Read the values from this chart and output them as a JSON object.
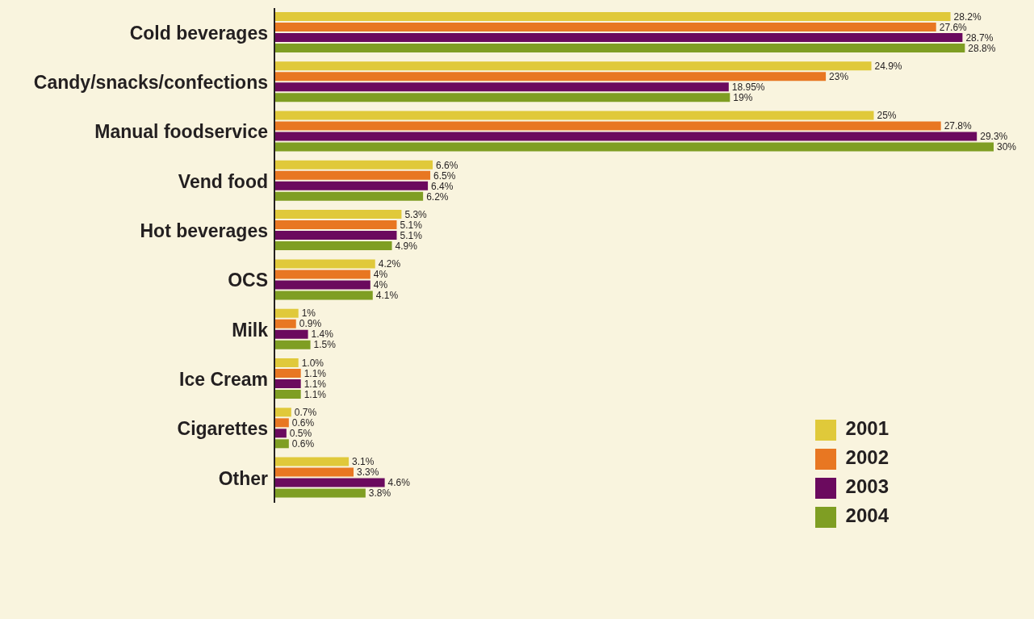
{
  "chart_data": {
    "type": "bar",
    "orientation": "horizontal",
    "categories": [
      "Cold beverages",
      "Candy/snacks/confections",
      "Manual foodservice",
      "Vend food",
      "Hot beverages",
      "OCS",
      "Milk",
      "Ice Cream",
      "Cigarettes",
      "Other"
    ],
    "series": [
      {
        "name": "2001",
        "color": "#e0c93a",
        "values": [
          28.2,
          24.9,
          25,
          6.6,
          5.3,
          4.2,
          1,
          1.0,
          0.7,
          3.1
        ],
        "value_labels": [
          "28.2%",
          "24.9%",
          "25%",
          "6.6%",
          "5.3%",
          "4.2%",
          "1%",
          "1.0%",
          "0.7%",
          "3.1%"
        ]
      },
      {
        "name": "2002",
        "color": "#e87722",
        "values": [
          27.6,
          23,
          27.8,
          6.5,
          5.1,
          4,
          0.9,
          1.1,
          0.6,
          3.3
        ],
        "value_labels": [
          "27.6%",
          "23%",
          "27.8%",
          "6.5%",
          "5.1%",
          "4%",
          "0.9%",
          "1.1%",
          "0.6%",
          "3.3%"
        ]
      },
      {
        "name": "2003",
        "color": "#6b0a5e",
        "values": [
          28.7,
          18.95,
          29.3,
          6.4,
          5.1,
          4,
          1.4,
          1.1,
          0.5,
          4.6
        ],
        "value_labels": [
          "28.7%",
          "18.95%",
          "29.3%",
          "6.4%",
          "5.1%",
          "4%",
          "1.4%",
          "1.1%",
          "0.5%",
          "4.6%"
        ]
      },
      {
        "name": "2004",
        "color": "#7f9e23",
        "values": [
          28.8,
          19,
          30,
          6.2,
          4.9,
          4.1,
          1.5,
          1.1,
          0.6,
          3.8
        ],
        "value_labels": [
          "28.8%",
          "19%",
          "30%",
          "6.2%",
          "4.9%",
          "4.1%",
          "1.5%",
          "1.1%",
          "0.6%",
          "3.8%"
        ]
      }
    ],
    "tick_labels": "y",
    "legend": "bottom right",
    "grid": false
  }
}
